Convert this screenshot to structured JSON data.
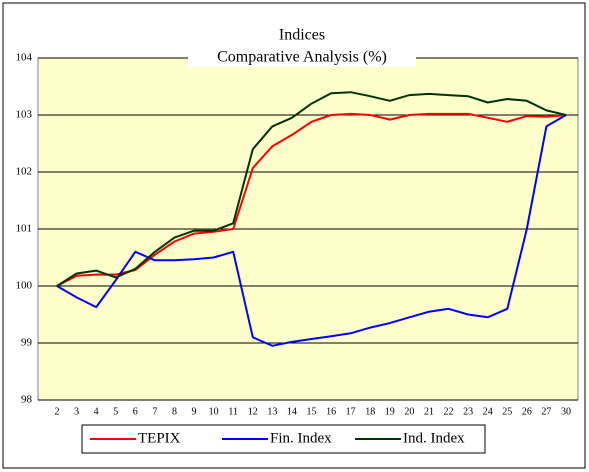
{
  "chart_data": {
    "type": "line",
    "title": "Indices",
    "subtitle": "Comparative Analysis (%)",
    "categories": [
      "2",
      "3",
      "4",
      "5",
      "6",
      "7",
      "8",
      "9",
      "10",
      "11",
      "12",
      "13",
      "14",
      "15",
      "16",
      "17",
      "18",
      "19",
      "20",
      "21",
      "22",
      "23",
      "24",
      "25",
      "26",
      "27",
      "30"
    ],
    "series": [
      {
        "name": "TEPIX",
        "color": "#ff0000",
        "values": [
          100,
          100.18,
          100.2,
          100.2,
          100.28,
          100.55,
          100.78,
          100.92,
          100.95,
          101.0,
          102.07,
          102.45,
          102.65,
          102.88,
          103.0,
          103.02,
          103.0,
          102.92,
          103.0,
          103.02,
          103.02,
          103.02,
          102.95,
          102.88,
          102.98,
          102.97,
          103.0
        ]
      },
      {
        "name": "Fin. Index",
        "color": "#0000ff",
        "values": [
          100,
          99.8,
          99.63,
          100.1,
          100.6,
          100.45,
          100.45,
          100.47,
          100.5,
          100.6,
          99.1,
          98.95,
          99.02,
          99.07,
          99.12,
          99.17,
          99.27,
          99.35,
          99.45,
          99.55,
          99.6,
          99.5,
          99.45,
          99.6,
          101.0,
          102.8,
          103.0
        ]
      },
      {
        "name": "Ind. Index",
        "color": "#003300",
        "values": [
          100,
          100.22,
          100.27,
          100.15,
          100.3,
          100.6,
          100.85,
          100.97,
          100.97,
          101.1,
          102.4,
          102.8,
          102.95,
          103.2,
          103.38,
          103.4,
          103.33,
          103.25,
          103.35,
          103.37,
          103.35,
          103.33,
          103.22,
          103.28,
          103.25,
          103.08,
          103.0
        ]
      }
    ],
    "ylim": [
      98,
      104
    ],
    "yticks": [
      98,
      99,
      100,
      101,
      102,
      103,
      104
    ],
    "grid": true
  }
}
